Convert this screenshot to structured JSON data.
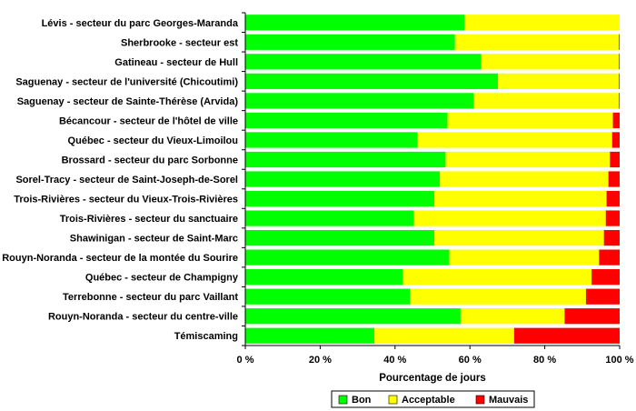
{
  "chart_data": {
    "type": "bar",
    "orientation": "horizontal",
    "stacked": true,
    "categories": [
      "Lévis - secteur du parc Georges-Maranda",
      "Sherbrooke - secteur est",
      "Gatineau - secteur de Hull",
      "Saguenay - secteur de l'université (Chicoutimi)",
      "Saguenay - secteur de Sainte-Thérèse (Arvida)",
      "Bécancour - secteur de l'hôtel de ville",
      "Québec - secteur du Vieux-Limoilou",
      "Brossard - secteur du parc Sorbonne",
      "Sorel-Tracy - secteur de Saint-Joseph-de-Sorel",
      "Trois-Rivières - secteur du Vieux-Trois-Rivières",
      "Trois-Rivières - secteur du sanctuaire",
      "Shawinigan - secteur de Saint-Marc",
      "Rouyn-Noranda - secteur de la montée du Sourire",
      "Québec - secteur de Champigny",
      "Terrebonne - secteur du parc Vaillant",
      "Rouyn-Noranda - secteur du centre-ville",
      "Témiscaming"
    ],
    "series": [
      {
        "name": "Bon",
        "color": "#00ff00",
        "values": [
          58.5,
          56,
          63,
          67.5,
          61,
          54,
          46,
          53.5,
          52,
          50.5,
          45,
          50.5,
          54.5,
          42,
          44,
          57.5,
          34.5
        ]
      },
      {
        "name": "Acceptable",
        "color": "#ffff00",
        "values": [
          41.5,
          43.8,
          36.8,
          32.3,
          38.8,
          44.2,
          52,
          43.9,
          45,
          46,
          51.3,
          45.3,
          40,
          50.5,
          47,
          27.8,
          37.3
        ]
      },
      {
        "name": "Mauvais",
        "color": "#ff0000",
        "values": [
          0,
          0.2,
          0.2,
          0.2,
          0.2,
          1.8,
          2,
          2.6,
          3,
          3.5,
          3.7,
          4.2,
          5.5,
          7.5,
          9,
          14.7,
          28.2
        ]
      }
    ],
    "xlabel": "Pourcentage de jours",
    "xlim": [
      0,
      100
    ],
    "xticks": [
      0,
      20,
      40,
      60,
      80,
      100
    ],
    "xtick_labels": [
      "0 %",
      "20 %",
      "40 %",
      "60 %",
      "80 %",
      "100 %"
    ],
    "legend_position": "bottom",
    "grid": false
  }
}
